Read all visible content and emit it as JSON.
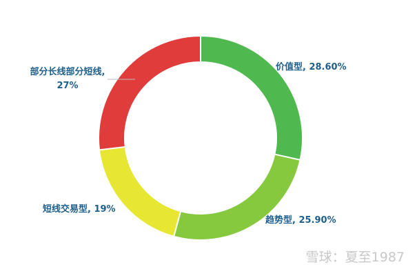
{
  "chart_data": {
    "type": "donut",
    "values": [
      28.6,
      25.9,
      19,
      27
    ],
    "value_labels": [
      "价值型, 28.60%",
      "趋势型, 25.90%",
      "短线交易型, 19%",
      "部分长线部分短线, 27%"
    ],
    "colors": [
      "#4fb84f",
      "#86c93e",
      "#e6e633",
      "#e03c3c"
    ],
    "watermark": "雪球：夏至1987"
  }
}
